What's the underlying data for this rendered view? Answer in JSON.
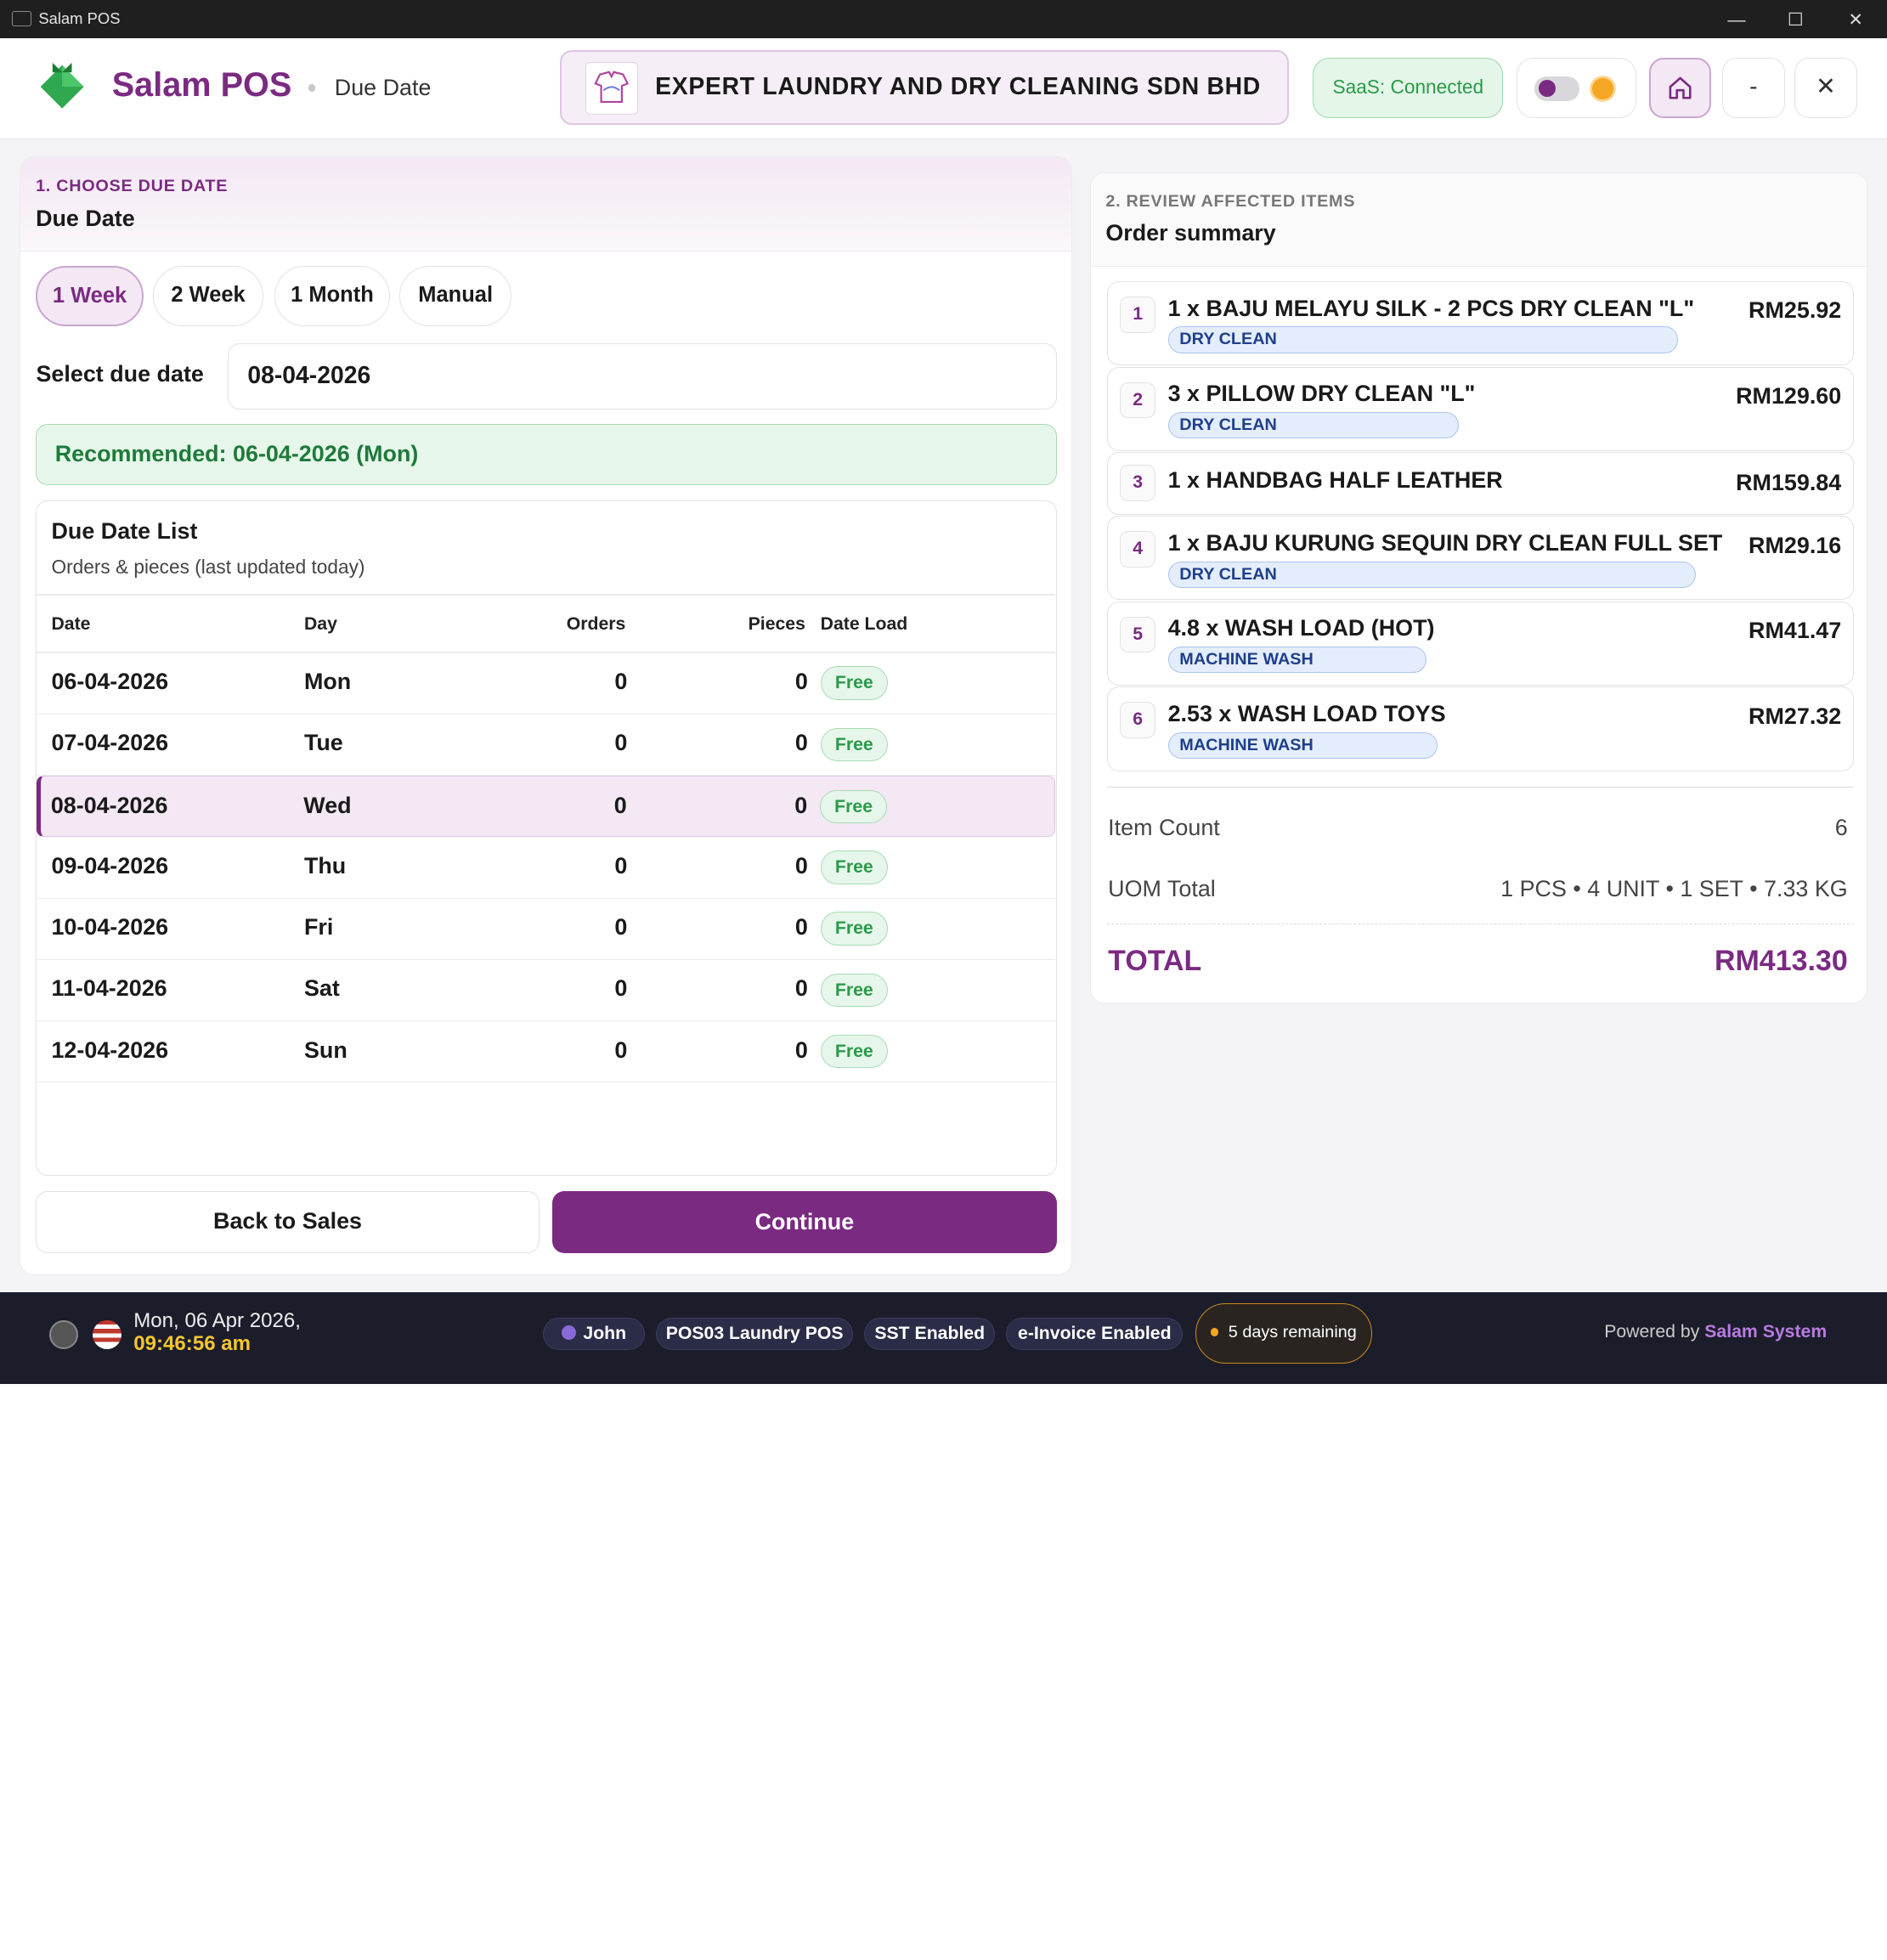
{
  "window": {
    "title": "Salam POS",
    "minimize": "—",
    "maximize": "☐",
    "close": "✕"
  },
  "header": {
    "brand": "Salam POS",
    "page": "Due Date",
    "company": "EXPERT LAUNDRY AND DRY CLEANING SDN BHD",
    "saas": "SaaS: Connected",
    "min_label": "-",
    "close_label": "✕",
    "home_icon": "home-icon"
  },
  "left": {
    "step": "1. CHOOSE DUE DATE",
    "title": "Due Date",
    "chips": [
      "1 Week",
      "2 Week",
      "1 Month",
      "Manual"
    ],
    "active_chip": 0,
    "select_label": "Select due date",
    "select_value": "08-04-2026",
    "recommended": "Recommended: 06-04-2026 (Mon)",
    "list_title": "Due Date List",
    "list_sub": "Orders & pieces (last updated today)",
    "columns": [
      "Date",
      "Day",
      "Orders",
      "Pieces",
      "Date Load"
    ],
    "rows": [
      {
        "date": "06-04-2026",
        "day": "Mon",
        "orders": "0",
        "pieces": "0",
        "load": "Free"
      },
      {
        "date": "07-04-2026",
        "day": "Tue",
        "orders": "0",
        "pieces": "0",
        "load": "Free"
      },
      {
        "date": "08-04-2026",
        "day": "Wed",
        "orders": "0",
        "pieces": "0",
        "load": "Free"
      },
      {
        "date": "09-04-2026",
        "day": "Thu",
        "orders": "0",
        "pieces": "0",
        "load": "Free"
      },
      {
        "date": "10-04-2026",
        "day": "Fri",
        "orders": "0",
        "pieces": "0",
        "load": "Free"
      },
      {
        "date": "11-04-2026",
        "day": "Sat",
        "orders": "0",
        "pieces": "0",
        "load": "Free"
      },
      {
        "date": "12-04-2026",
        "day": "Sun",
        "orders": "0",
        "pieces": "0",
        "load": "Free"
      }
    ],
    "selected_row": 2,
    "back": "Back to Sales",
    "continue": "Continue"
  },
  "right": {
    "step": "2. REVIEW AFFECTED ITEMS",
    "title": "Order summary",
    "items": [
      {
        "n": "1",
        "name": "1 x BAJU MELAYU SILK - 2 PCS DRY CLEAN \"L\"",
        "price": "RM25.92",
        "tag": "DRY CLEAN"
      },
      {
        "n": "2",
        "name": "3 x PILLOW DRY CLEAN \"L\"",
        "price": "RM129.60",
        "tag": "DRY CLEAN"
      },
      {
        "n": "3",
        "name": "1 x HANDBAG HALF LEATHER",
        "price": "RM159.84",
        "tag": ""
      },
      {
        "n": "4",
        "name": "1 x BAJU KURUNG SEQUIN DRY CLEAN FULL SET",
        "price": "RM29.16",
        "tag": "DRY CLEAN"
      },
      {
        "n": "5",
        "name": "4.8 x WASH LOAD (HOT)",
        "price": "RM41.47",
        "tag": "MACHINE WASH"
      },
      {
        "n": "6",
        "name": "2.53 x WASH LOAD TOYS",
        "price": "RM27.32",
        "tag": "MACHINE WASH"
      }
    ],
    "item_count_label": "Item Count",
    "item_count": "6",
    "uom_label": "UOM Total",
    "uom": "1 PCS • 4 UNIT • 1 SET • 7.33 KG",
    "total_label": "TOTAL",
    "total": "RM413.30"
  },
  "footer": {
    "date": "Mon, 06 Apr 2026,",
    "time": "09:46:56 am",
    "user": "John",
    "pos": "POS03 Laundry POS",
    "sst": "SST Enabled",
    "einvoice": "e-Invoice Enabled",
    "remaining": "5 days remaining",
    "powered_prefix": "Powered by",
    "powered_brand": "Salam System"
  },
  "colors": {
    "brand": "#7b2a82",
    "success": "#2a9a4a",
    "tag_blue": "#1e3f8a",
    "footer_bg": "#1c1d2b"
  }
}
